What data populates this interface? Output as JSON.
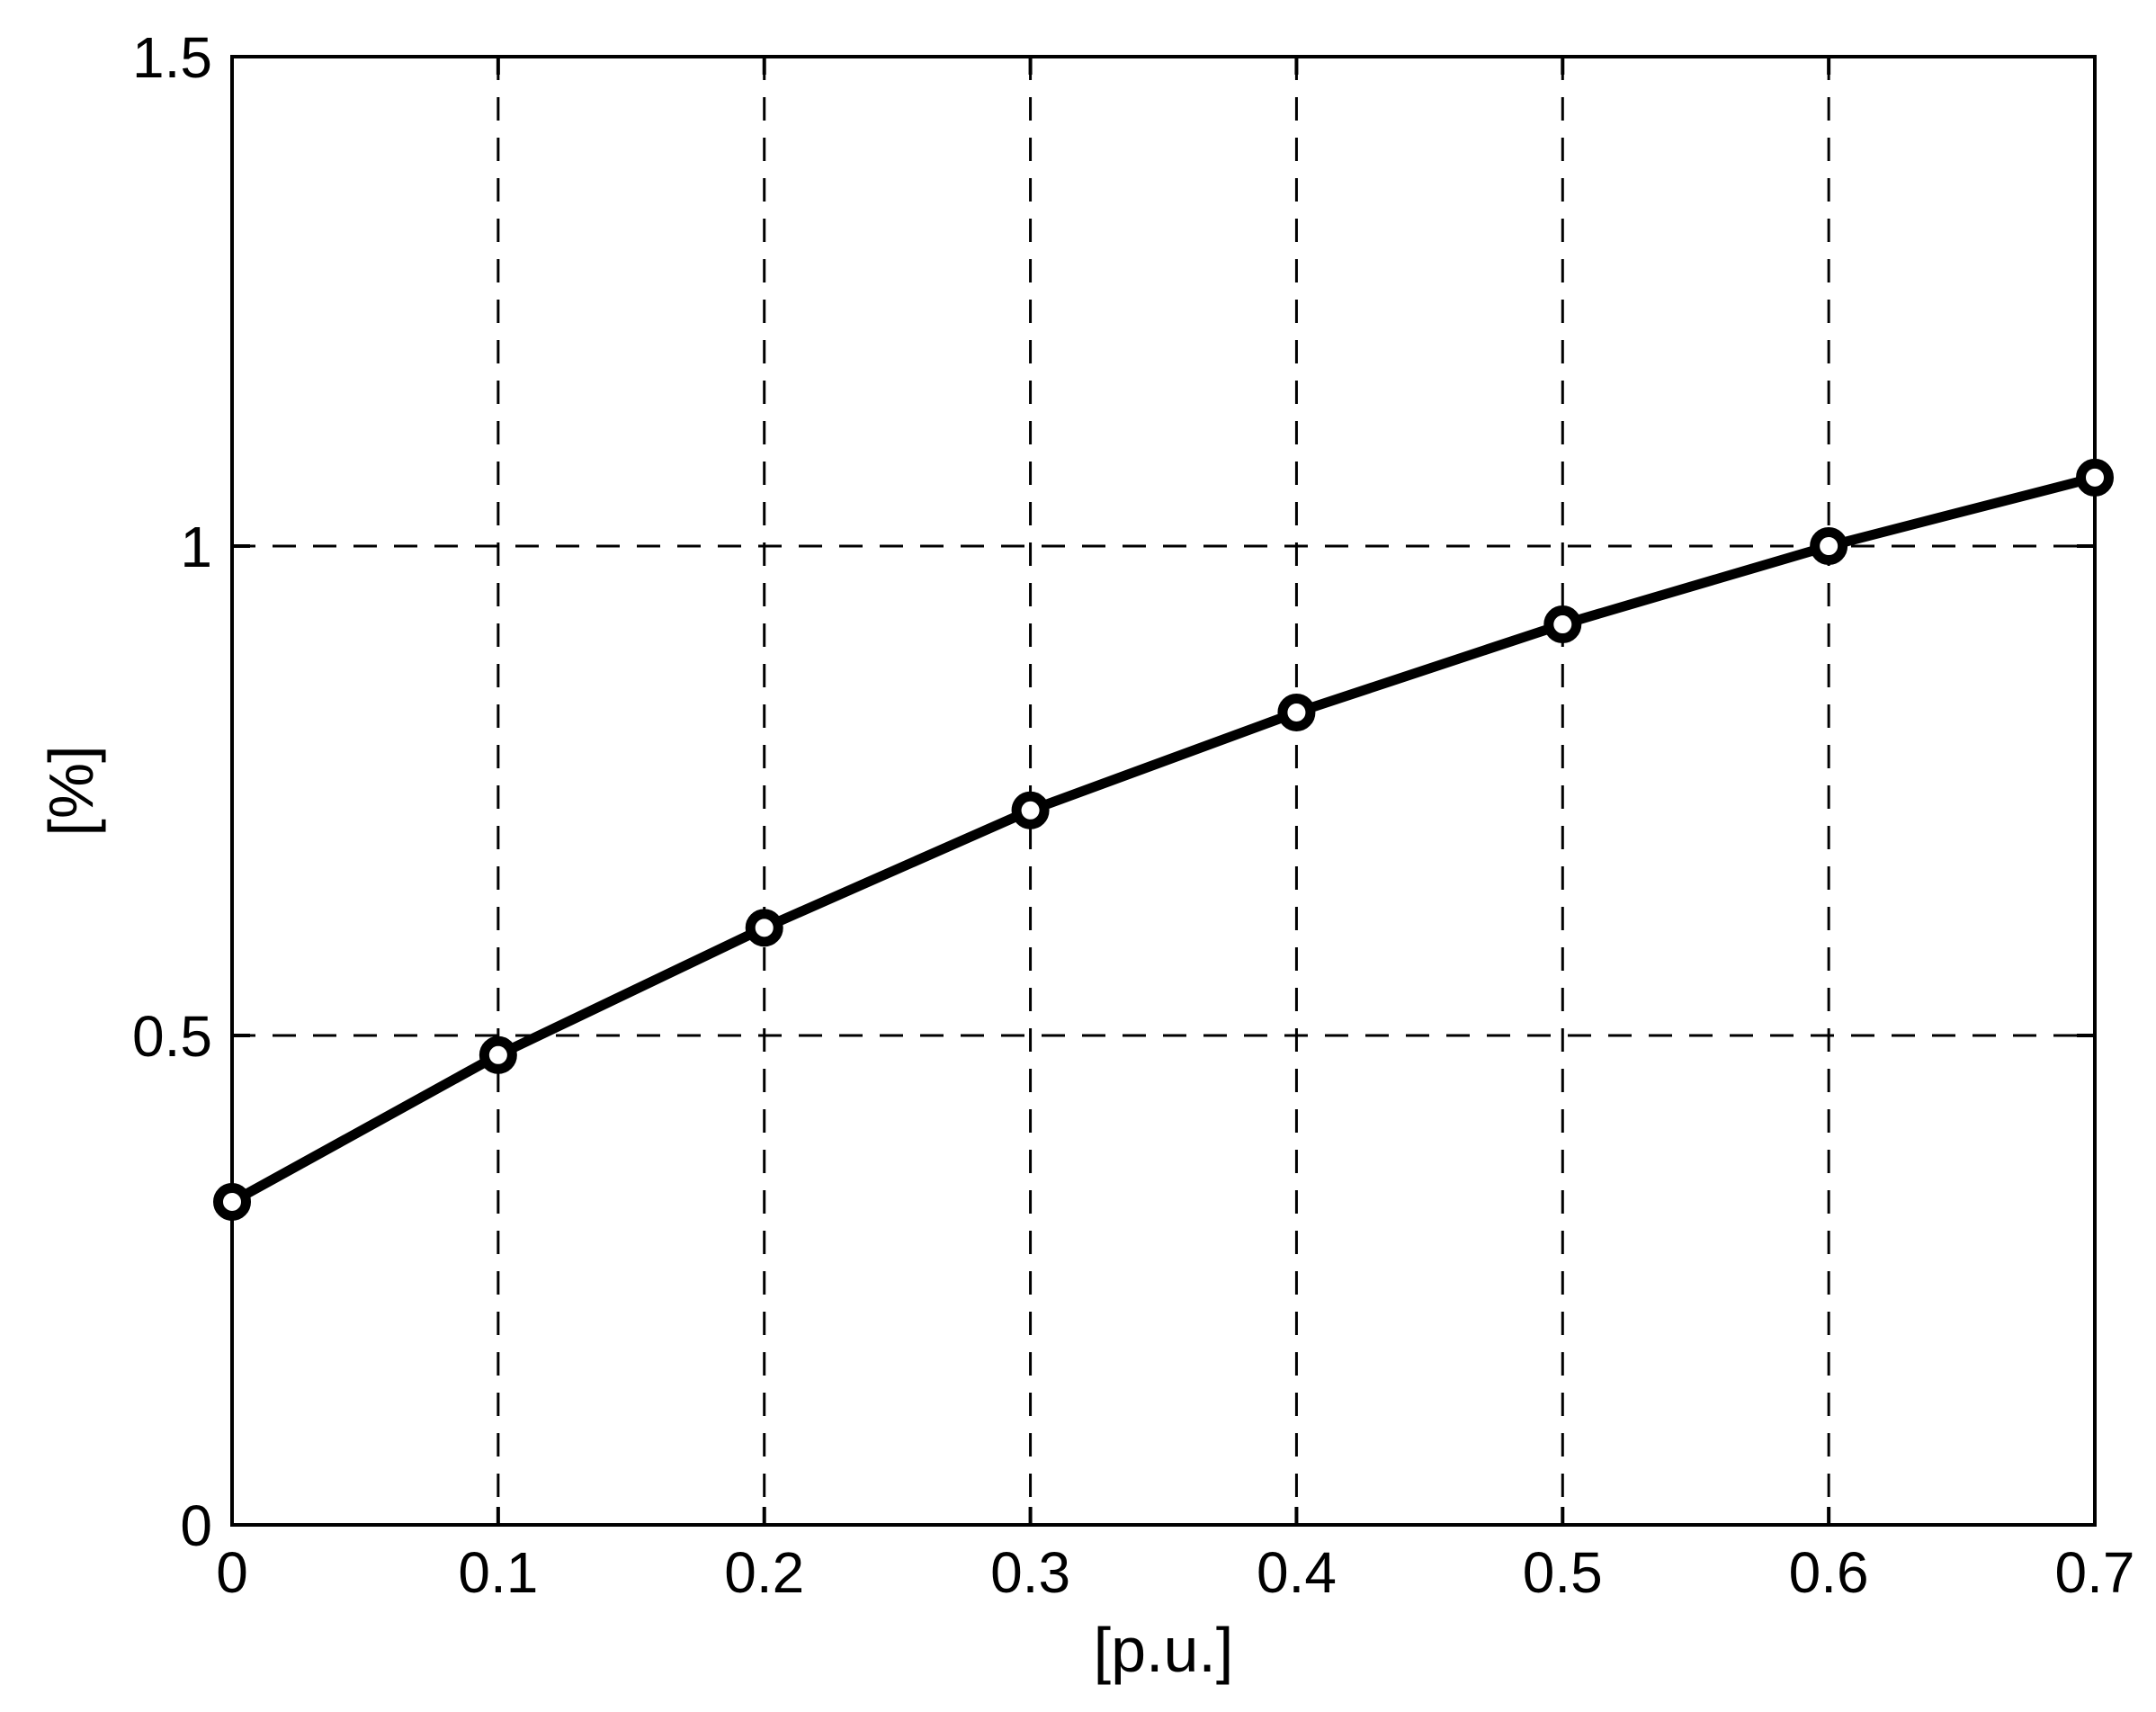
{
  "chart_data": {
    "type": "line",
    "title": "",
    "xlabel": "[p.u.]",
    "ylabel": "[%]",
    "x": [
      0,
      0.1,
      0.2,
      0.3,
      0.4,
      0.5,
      0.6,
      0.7
    ],
    "series": [
      {
        "name": "curve",
        "values": [
          0.33,
          0.48,
          0.61,
          0.73,
          0.83,
          0.92,
          1.0,
          1.07
        ]
      }
    ],
    "xlim": [
      0,
      0.7
    ],
    "ylim": [
      0,
      1.5
    ],
    "xticks": [
      0,
      0.1,
      0.2,
      0.3,
      0.4,
      0.5,
      0.6,
      0.7
    ],
    "xtick_labels": [
      "0",
      "0.1",
      "0.2",
      "0.3",
      "0.4",
      "0.5",
      "0.6",
      "0.7"
    ],
    "yticks": [
      0,
      0.5,
      1,
      1.5
    ],
    "ytick_labels": [
      "0",
      "0.5",
      "1",
      "1.5"
    ],
    "grid": "on",
    "grid_line_style": "dashed",
    "legend": null,
    "line_color": "#000000",
    "marker": "circle",
    "marker_fill": "#ffffff",
    "axis_color": "#000000",
    "background_color": "#ffffff"
  }
}
